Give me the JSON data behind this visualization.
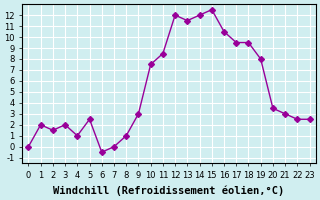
{
  "x": [
    0,
    1,
    2,
    3,
    4,
    5,
    6,
    7,
    8,
    9,
    10,
    11,
    12,
    13,
    14,
    15,
    16,
    17,
    18,
    19,
    20,
    21,
    22,
    23
  ],
  "y": [
    0,
    2,
    1.5,
    2,
    1,
    2.5,
    -0.5,
    0,
    1,
    3,
    7.5,
    8.5,
    12,
    11.5,
    12,
    12.5,
    10.5,
    9.5,
    9.5,
    8,
    3.5,
    3,
    2.5,
    2.5
  ],
  "line_color": "#990099",
  "marker": "D",
  "marker_size": 3,
  "bg_color": "#d0eef0",
  "grid_color": "#ffffff",
  "xlabel": "Windchill (Refroidissement éolien,°C)",
  "xlabel_fontsize": 7.5,
  "ylabel_ticks": [
    -1,
    0,
    1,
    2,
    3,
    4,
    5,
    6,
    7,
    8,
    9,
    10,
    11,
    12
  ],
  "xlim": [
    -0.5,
    23.5
  ],
  "ylim": [
    -1.5,
    13
  ],
  "xticks": [
    0,
    1,
    2,
    3,
    4,
    5,
    6,
    7,
    8,
    9,
    10,
    11,
    12,
    13,
    14,
    15,
    16,
    17,
    18,
    19,
    20,
    21,
    22,
    23
  ],
  "tick_fontsize": 6
}
